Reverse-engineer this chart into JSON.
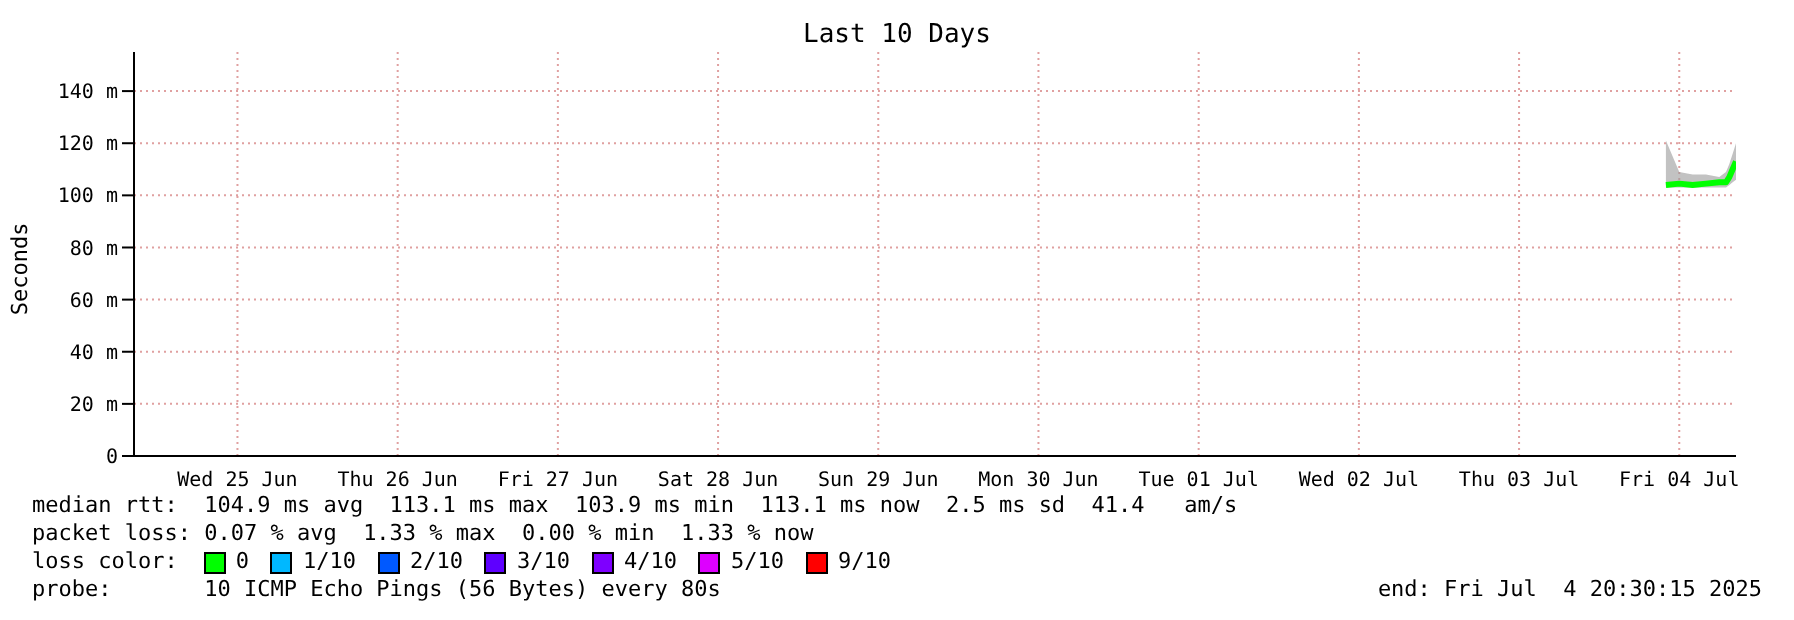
{
  "chart_data": {
    "type": "line",
    "title": "Last 10 Days",
    "ylabel": "Seconds",
    "legend_title": "loss color:",
    "legend": "bottom",
    "grid": true,
    "xlim": [
      "2025-06-24T20:30",
      "2025-07-04T20:30"
    ],
    "xticks": [
      {
        "value": "2025-06-25T12:00",
        "label": "Wed 25 Jun"
      },
      {
        "value": "2025-06-26T12:00",
        "label": "Thu 26 Jun"
      },
      {
        "value": "2025-06-27T12:00",
        "label": "Fri 27 Jun"
      },
      {
        "value": "2025-06-28T12:00",
        "label": "Sat 28 Jun"
      },
      {
        "value": "2025-06-29T12:00",
        "label": "Sun 29 Jun"
      },
      {
        "value": "2025-06-30T12:00",
        "label": "Mon 30 Jun"
      },
      {
        "value": "2025-07-01T12:00",
        "label": "Tue 01 Jul"
      },
      {
        "value": "2025-07-02T12:00",
        "label": "Wed 02 Jul"
      },
      {
        "value": "2025-07-03T12:00",
        "label": "Thu 03 Jul"
      },
      {
        "value": "2025-07-04T12:00",
        "label": "Fri 04 Jul"
      }
    ],
    "ylim": [
      0,
      155
    ],
    "yticks": [
      0,
      {
        "value": 20,
        "label": "20 m"
      },
      {
        "value": 40,
        "label": "40 m"
      },
      {
        "value": 60,
        "label": "60 m"
      },
      {
        "value": 80,
        "label": "80 m"
      },
      {
        "value": 100,
        "label": "100 m"
      },
      {
        "value": 120,
        "label": "120 m"
      },
      {
        "value": 140,
        "label": "140 m"
      }
    ],
    "series": [
      {
        "name": "0",
        "color": "#00ff00",
        "x": [
          "2025-07-04T10:00",
          "2025-07-04T12:00",
          "2025-07-04T14:00",
          "2025-07-04T16:00",
          "2025-07-04T18:00",
          "2025-07-04T19:00",
          "2025-07-04T19:30",
          "2025-07-04T20:00",
          "2025-07-04T20:30"
        ],
        "values": [
          104,
          104.5,
          104,
          104.5,
          105,
          105,
          107,
          110,
          113
        ],
        "lower": [
          103,
          103,
          103,
          103,
          103,
          103,
          104,
          105,
          106
        ],
        "upper": [
          121,
          109,
          108,
          108,
          107,
          109,
          112,
          116,
          120
        ]
      },
      {
        "name": "1/10",
        "color": "#00b8ff"
      },
      {
        "name": "2/10",
        "color": "#0059ff"
      },
      {
        "name": "3/10",
        "color": "#5e00ff"
      },
      {
        "name": "4/10",
        "color": "#7e00ff"
      },
      {
        "name": "5/10",
        "color": "#dd00ff"
      },
      {
        "name": "9/10",
        "color": "#ff0000"
      }
    ],
    "annotations": [
      "median rtt:  104.9 ms avg  113.1 ms max  103.9 ms min  113.1 ms now  2.5 ms sd  41.4   am/s",
      "packet loss: 0.07 % avg  1.33 % max  0.00 % min  1.33 % now",
      "probe:       10 ICMP Echo Pings (56 Bytes) every 80s",
      "end: Fri Jul  4 20:30:15 2025"
    ]
  }
}
